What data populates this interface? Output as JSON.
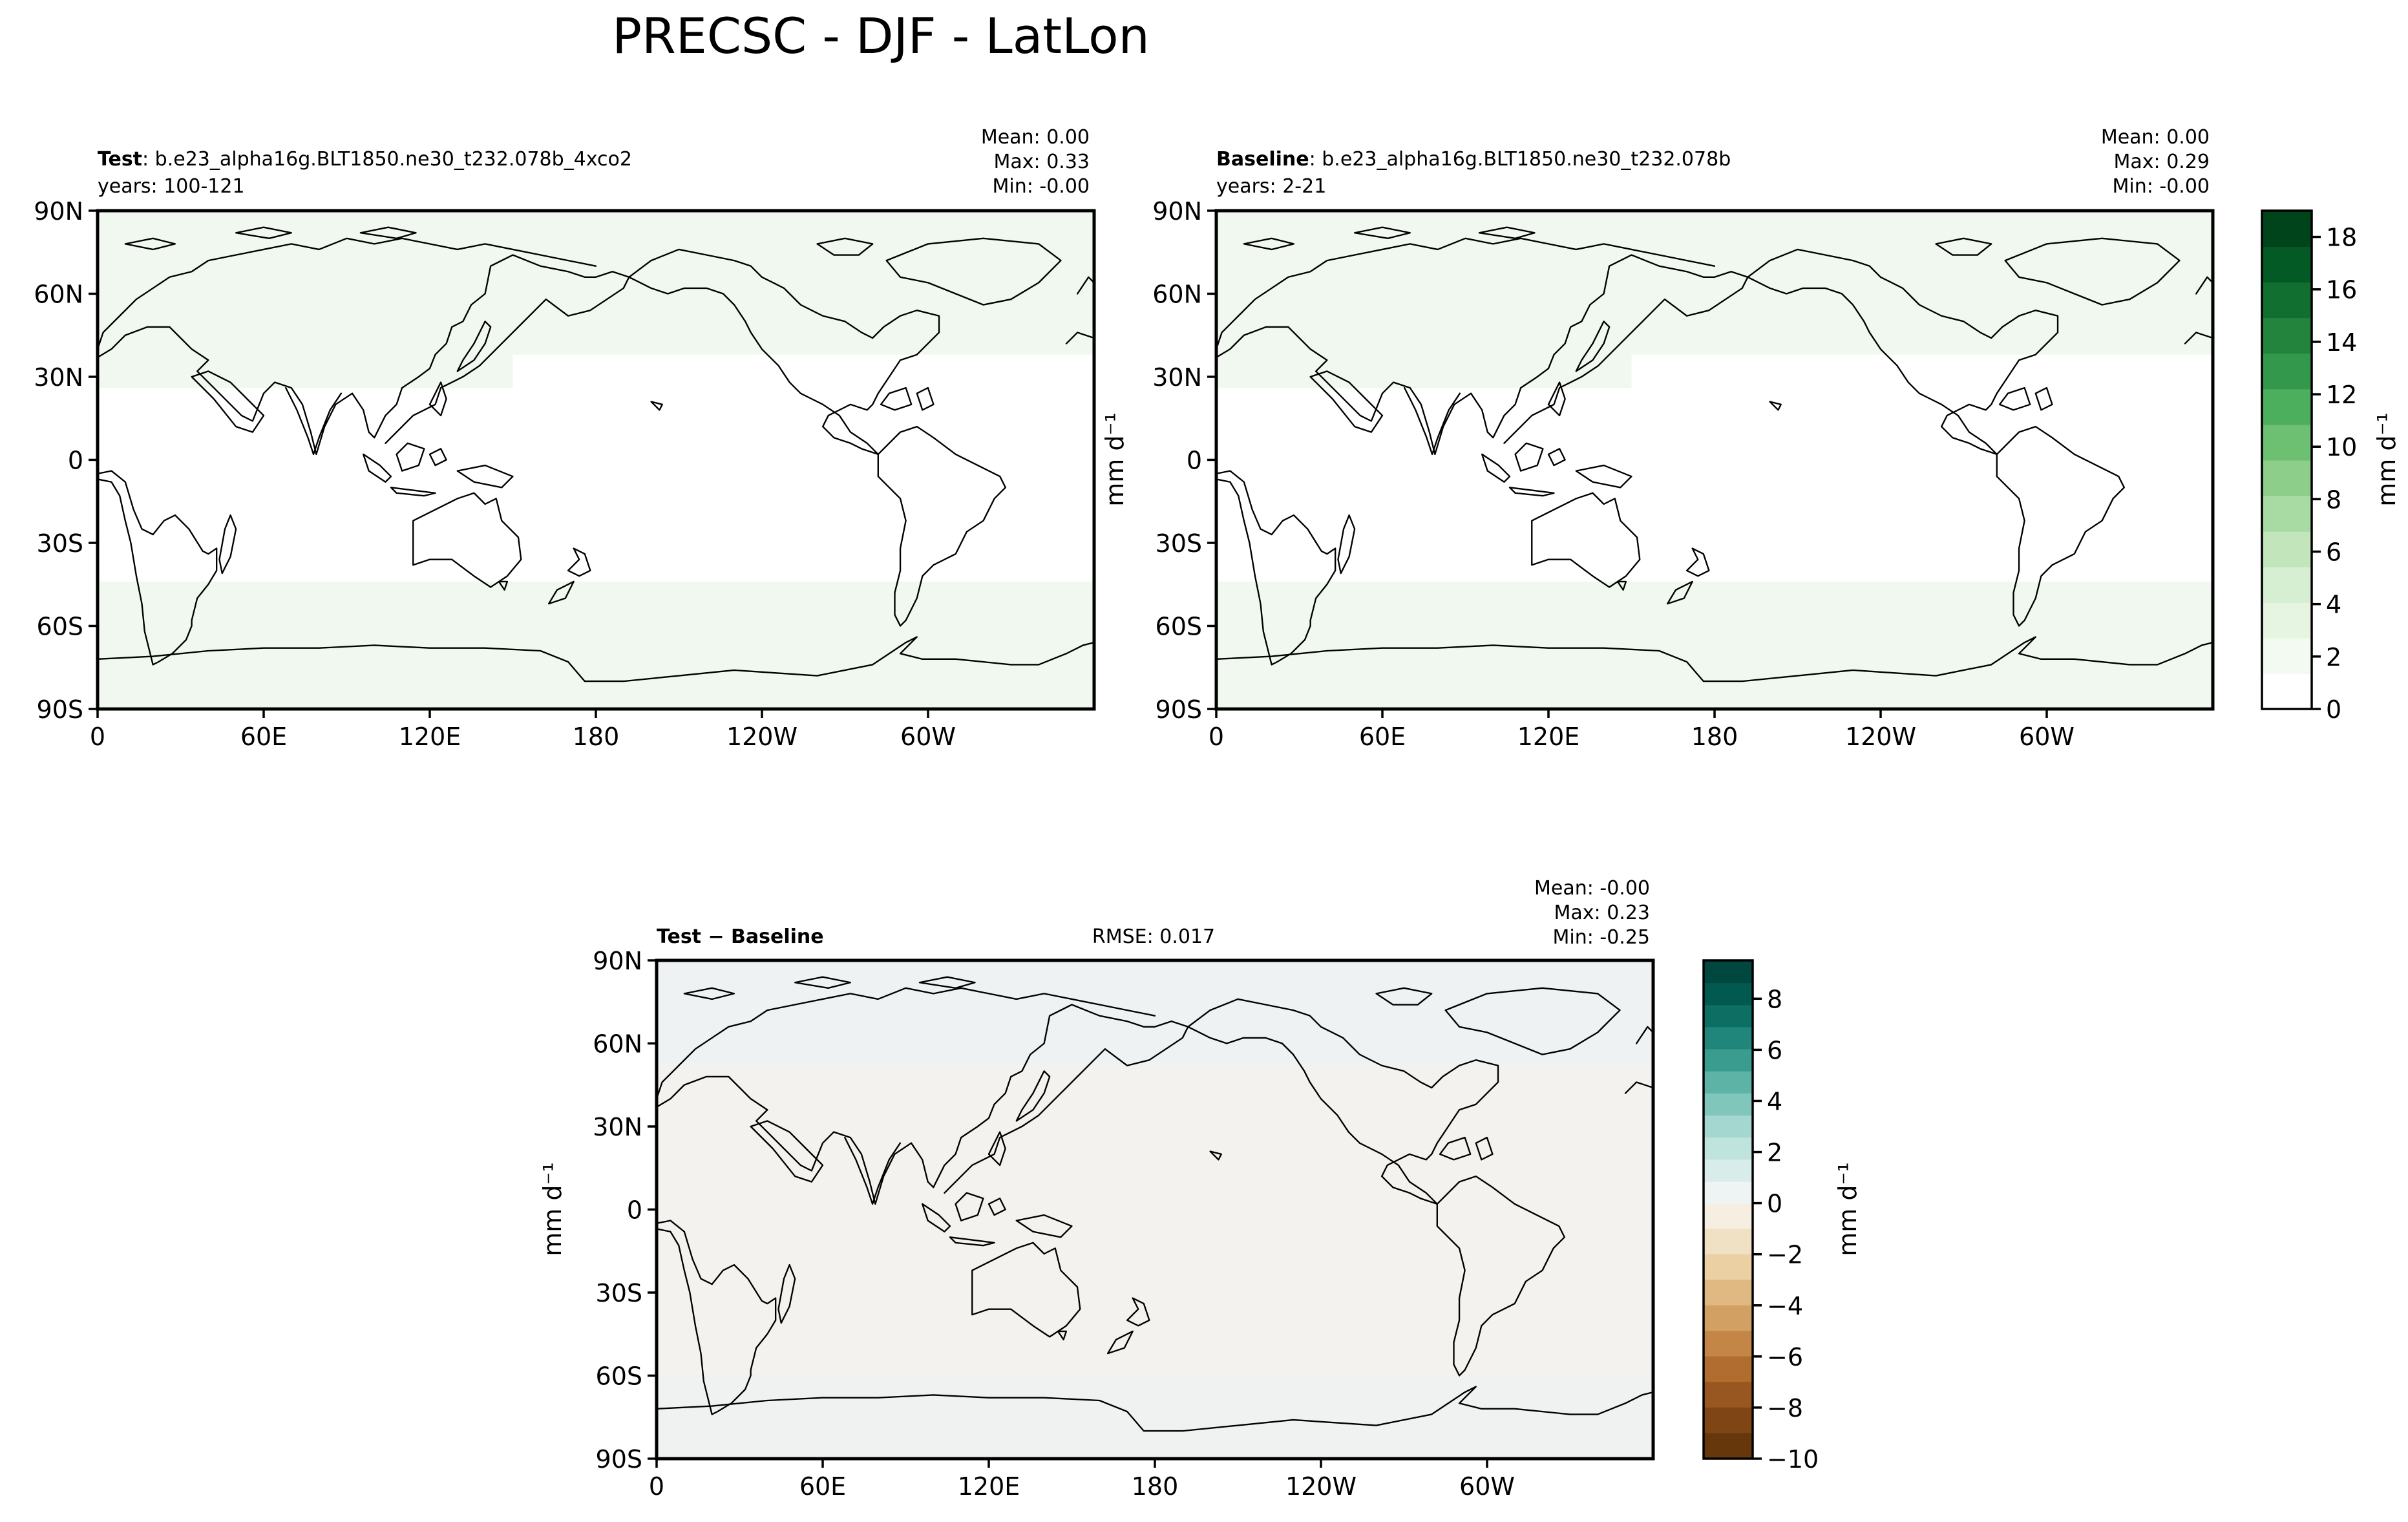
{
  "figure": {
    "title": "PRECSC - DJF - LatLon"
  },
  "colors": {
    "precip_cmap": [
      "#ffffff",
      "#f3faf1",
      "#e6f4e2",
      "#d6eed1",
      "#c2e5bc",
      "#a8dba4",
      "#8cce8a",
      "#6dbf71",
      "#4caf5e",
      "#34984c",
      "#22843d",
      "#116f30",
      "#045a24",
      "#00441b"
    ],
    "diff_cmap_pos": [
      "#eef4f4",
      "#d8ece9",
      "#bfe3dd",
      "#a3d7cf",
      "#80c6bb",
      "#5db3a6",
      "#3a9c8f",
      "#20857a",
      "#0d6f64",
      "#01594f",
      "#00473f"
    ],
    "diff_cmap_neg": [
      "#f6eee0",
      "#f1e1c4",
      "#ead0a3",
      "#dfb981",
      "#d2a062",
      "#c38646",
      "#b06d2f",
      "#985620",
      "#804515",
      "#66370b"
    ],
    "test_fill": "#f1f8ef",
    "diff_fill": "#f3f2ee",
    "diff_fill_alt": "#eef2f3"
  },
  "chart_data": [
    {
      "type": "heatmap",
      "panel": "test",
      "title_bold": "Test",
      "title_rest": ": b.e23_alpha16g.BLT1850.ne30_t232.078b_4xco2",
      "subtitle": "years: 100-121",
      "stats": [
        "Mean:  0.00",
        "Max:  0.33",
        "Min: -0.00"
      ],
      "xticks": [
        "0",
        "60E",
        "120E",
        "180",
        "120W",
        "60W"
      ],
      "yticks": [
        "90N",
        "60N",
        "30N",
        "0",
        "30S",
        "60S",
        "90S"
      ],
      "xlim": [
        0,
        360
      ],
      "ylim": [
        -90,
        90
      ]
    },
    {
      "type": "heatmap",
      "panel": "baseline",
      "title_bold": "Baseline",
      "title_rest": ": b.e23_alpha16g.BLT1850.ne30_t232.078b",
      "subtitle": "years: 2-21",
      "stats": [
        "Mean:  0.00",
        "Max:  0.29",
        "Min: -0.00"
      ],
      "xticks": [
        "0",
        "60E",
        "120E",
        "180",
        "120W",
        "60W"
      ],
      "yticks": [
        "90N",
        "60N",
        "30N",
        "0",
        "30S",
        "60S",
        "90S"
      ],
      "xlim": [
        0,
        360
      ],
      "ylim": [
        -90,
        90
      ],
      "colorbar": {
        "label": "mm d⁻¹",
        "ticks": [
          "0",
          "2",
          "4",
          "6",
          "8",
          "10",
          "12",
          "14",
          "16",
          "18"
        ],
        "range": [
          0,
          19
        ]
      }
    },
    {
      "type": "heatmap",
      "panel": "diff",
      "title_bold": "Test − Baseline",
      "rmse": "RMSE: 0.017",
      "stats": [
        "Mean: -0.00",
        "Max:  0.23",
        "Min: -0.25"
      ],
      "xticks": [
        "0",
        "60E",
        "120E",
        "180",
        "120W",
        "60W"
      ],
      "yticks": [
        "90N",
        "60N",
        "30N",
        "0",
        "30S",
        "60S",
        "90S"
      ],
      "xlim": [
        0,
        360
      ],
      "ylim": [
        -90,
        90
      ],
      "colorbar": {
        "label": "mm d⁻¹",
        "ticks": [
          "8",
          "6",
          "4",
          "2",
          "0",
          "−2",
          "−4",
          "−6",
          "−8",
          "−10"
        ],
        "range": [
          -10,
          9.5
        ]
      }
    }
  ],
  "units_label": "mm d⁻¹"
}
